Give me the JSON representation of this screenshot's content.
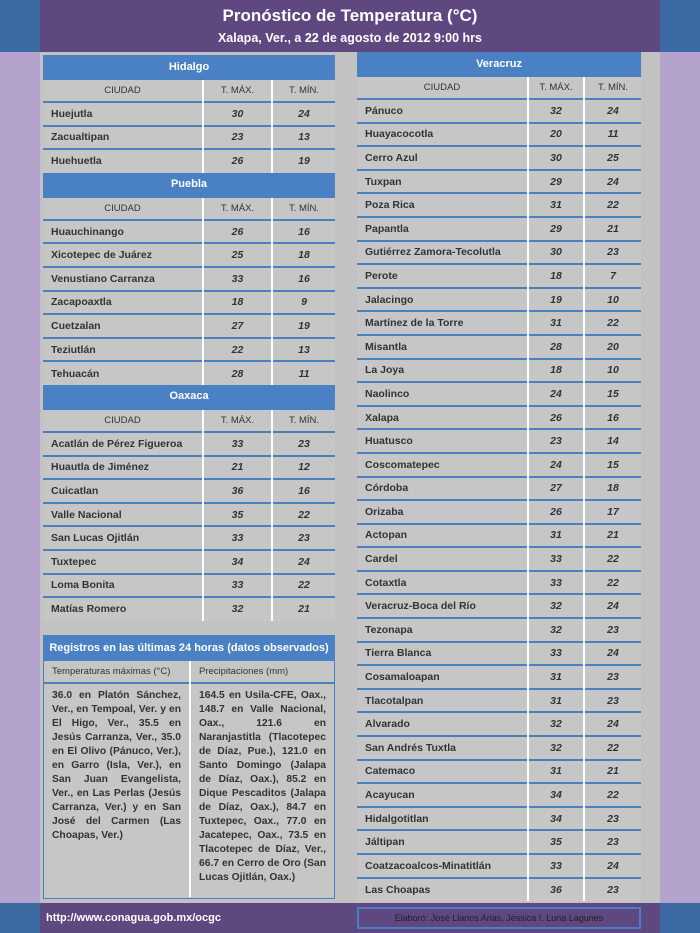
{
  "header": {
    "title": "Pronóstico de Temperatura (°C)",
    "subtitle": "Xalapa, Ver., a 22 de agosto de 2012  9:00 hrs"
  },
  "columns": {
    "city": "CIUDAD",
    "max": "T. MÁX.",
    "min": "T. MÍN."
  },
  "left_sections": [
    {
      "name": "Hidalgo",
      "rows": [
        [
          "Huejutla",
          "30",
          "24"
        ],
        [
          "Zacualtipan",
          "23",
          "13"
        ],
        [
          "Huehuetla",
          "26",
          "19"
        ]
      ]
    },
    {
      "name": "Puebla",
      "rows": [
        [
          "Huauchinango",
          "26",
          "16"
        ],
        [
          "Xicotepec de Juárez",
          "25",
          "18"
        ],
        [
          "Venustiano Carranza",
          "33",
          "16"
        ],
        [
          "Zacapoaxtla",
          "18",
          "9"
        ],
        [
          "Cuetzalan",
          "27",
          "19"
        ],
        [
          "Teziutlán",
          "22",
          "13"
        ],
        [
          "Tehuacán",
          "28",
          "11"
        ]
      ]
    },
    {
      "name": "Oaxaca",
      "rows": [
        [
          "Acatlán de Pérez Figueroa",
          "33",
          "23"
        ],
        [
          "Huautla de Jiménez",
          "21",
          "12"
        ],
        [
          "Cuicatlan",
          "36",
          "16"
        ],
        [
          "Valle Nacional",
          "35",
          "22"
        ],
        [
          "San Lucas Ojitlán",
          "33",
          "23"
        ],
        [
          "Tuxtepec",
          "34",
          "24"
        ],
        [
          "Loma Bonita",
          "33",
          "22"
        ],
        [
          "Matías Romero",
          "32",
          "21"
        ]
      ]
    }
  ],
  "right_sections": [
    {
      "name": "Veracruz",
      "rows": [
        [
          "Pánuco",
          "32",
          "24"
        ],
        [
          "Huayacocotla",
          "20",
          "11"
        ],
        [
          "Cerro Azul",
          "30",
          "25"
        ],
        [
          "Tuxpan",
          "29",
          "24"
        ],
        [
          "Poza Rica",
          "31",
          "22"
        ],
        [
          "Papantla",
          "29",
          "21"
        ],
        [
          "Gutiérrez Zamora-Tecolutla",
          "30",
          "23"
        ],
        [
          "Perote",
          "18",
          "7"
        ],
        [
          "Jalacingo",
          "19",
          "10"
        ],
        [
          "Martínez de la Torre",
          "31",
          "22"
        ],
        [
          "Misantla",
          "28",
          "20"
        ],
        [
          "La Joya",
          "18",
          "10"
        ],
        [
          "Naolinco",
          "24",
          "15"
        ],
        [
          "Xalapa",
          "26",
          "16"
        ],
        [
          "Huatusco",
          "23",
          "14"
        ],
        [
          "Coscomatepec",
          "24",
          "15"
        ],
        [
          "Córdoba",
          "27",
          "18"
        ],
        [
          "Orizaba",
          "26",
          "17"
        ],
        [
          "Actopan",
          "31",
          "21"
        ],
        [
          "Cardel",
          "33",
          "22"
        ],
        [
          "Cotaxtla",
          "33",
          "22"
        ],
        [
          "Veracruz-Boca del Río",
          "32",
          "24"
        ],
        [
          "Tezonapa",
          "32",
          "23"
        ],
        [
          "Tierra Blanca",
          "33",
          "24"
        ],
        [
          "Cosamaloapan",
          "31",
          "23"
        ],
        [
          "Tlacotalpan",
          "31",
          "23"
        ],
        [
          "Alvarado",
          "32",
          "24"
        ],
        [
          "San Andrés Tuxtla",
          "32",
          "22"
        ],
        [
          "Catemaco",
          "31",
          "21"
        ],
        [
          "Acayucan",
          "34",
          "22"
        ],
        [
          "Hidalgotitlan",
          "34",
          "23"
        ],
        [
          "Jáltipan",
          "35",
          "23"
        ],
        [
          "Coatzacoalcos-Minatitlán",
          "33",
          "24"
        ],
        [
          "Las Choapas",
          "36",
          "23"
        ]
      ]
    }
  ],
  "observed": {
    "title": "Registros en las últimas 24 horas (datos observados)",
    "max_header": "Temperaturas máximas (°C)",
    "precip_header": "Precipitaciones (mm)",
    "max_text": "36.0 en Platón Sánchez, Ver., en Tempoal, Ver. y en El Higo, Ver., 35.5 en Jesús Carranza, Ver., 35.0 en El Olivo (Pánuco, Ver.), en Garro (Isla, Ver.), en San Juan Evangelista, Ver., en Las Perlas (Jesús Carranza, Ver.) y en San José del Carmen (Las Choapas, Ver.)",
    "precip_text": "164.5 en Usila-CFE, Oax., 148.7 en Valle Nacional, Oax., 121.6 en Naranjastitla (Tlacotepec de Díaz, Pue.), 121.0 en Santo Domingo (Jalapa de Díaz, Oax.), 85.2 en Dique Pescaditos (Jalapa de Díaz, Oax.), 84.7 en Tuxtepec, Oax., 77.0 en Jacatepec, Oax., 73.5 en Tlacotepec de Díaz, Ver., 66.7 en Cerro de Oro (San Lucas Ojitlán, Oax.)"
  },
  "footer": {
    "url": "http://www.conagua.gob.mx/ocgc",
    "credits": "Elaboró: José Llanos Arias, Jéssica I. Luna Lagunes"
  }
}
